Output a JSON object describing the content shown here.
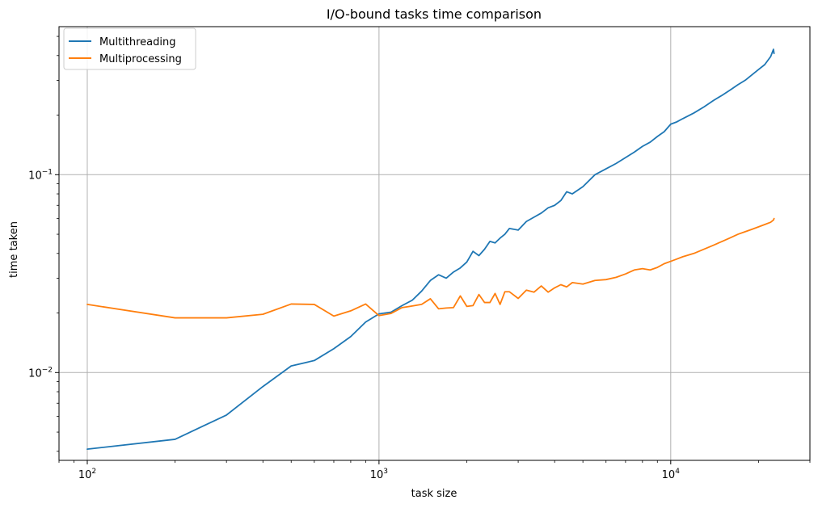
{
  "chart_data": {
    "type": "line",
    "title": "I/O-bound tasks time comparison",
    "xlabel": "task size",
    "ylabel": "time taken",
    "xscale": "log",
    "yscale": "log",
    "xlim": [
      80,
      30000
    ],
    "ylim": [
      0.0036,
      0.56
    ],
    "grid": true,
    "legend_position": "top-left",
    "x_ticks": [
      {
        "value": 100,
        "base": "10",
        "exp": "2"
      },
      {
        "value": 1000,
        "base": "10",
        "exp": "3"
      },
      {
        "value": 10000,
        "base": "10",
        "exp": "4"
      }
    ],
    "y_ticks": [
      {
        "value": 0.01,
        "base": "10",
        "exp": "−2"
      },
      {
        "value": 0.1,
        "base": "10",
        "exp": "−1"
      }
    ],
    "series": [
      {
        "name": "Multithreading",
        "color": "#1f77b4",
        "points": [
          [
            100,
            0.0041
          ],
          [
            200,
            0.0046
          ],
          [
            300,
            0.0061
          ],
          [
            400,
            0.0085
          ],
          [
            500,
            0.0108
          ],
          [
            600,
            0.0115
          ],
          [
            700,
            0.0132
          ],
          [
            800,
            0.0152
          ],
          [
            900,
            0.018
          ],
          [
            1000,
            0.0198
          ],
          [
            1100,
            0.0202
          ],
          [
            1200,
            0.0218
          ],
          [
            1300,
            0.0232
          ],
          [
            1400,
            0.0258
          ],
          [
            1500,
            0.0292
          ],
          [
            1600,
            0.0312
          ],
          [
            1700,
            0.03
          ],
          [
            1800,
            0.0322
          ],
          [
            1900,
            0.0338
          ],
          [
            2000,
            0.0362
          ],
          [
            2100,
            0.041
          ],
          [
            2200,
            0.039
          ],
          [
            2300,
            0.042
          ],
          [
            2400,
            0.046
          ],
          [
            2500,
            0.0452
          ],
          [
            2600,
            0.0478
          ],
          [
            2700,
            0.05
          ],
          [
            2800,
            0.0535
          ],
          [
            3000,
            0.0525
          ],
          [
            3200,
            0.058
          ],
          [
            3400,
            0.061
          ],
          [
            3600,
            0.064
          ],
          [
            3800,
            0.068
          ],
          [
            4000,
            0.07
          ],
          [
            4200,
            0.074
          ],
          [
            4400,
            0.082
          ],
          [
            4600,
            0.08
          ],
          [
            5000,
            0.087
          ],
          [
            5500,
            0.1
          ],
          [
            6000,
            0.107
          ],
          [
            6500,
            0.114
          ],
          [
            7000,
            0.122
          ],
          [
            7500,
            0.13
          ],
          [
            8000,
            0.139
          ],
          [
            8500,
            0.146
          ],
          [
            9000,
            0.156
          ],
          [
            9500,
            0.165
          ],
          [
            10000,
            0.18
          ],
          [
            10500,
            0.185
          ],
          [
            11000,
            0.192
          ],
          [
            12000,
            0.205
          ],
          [
            13000,
            0.22
          ],
          [
            14000,
            0.237
          ],
          [
            15000,
            0.252
          ],
          [
            16000,
            0.268
          ],
          [
            17000,
            0.285
          ],
          [
            18000,
            0.3
          ],
          [
            19000,
            0.32
          ],
          [
            20000,
            0.34
          ],
          [
            21000,
            0.36
          ],
          [
            22000,
            0.395
          ],
          [
            22500,
            0.43
          ],
          [
            22600,
            0.41
          ]
        ]
      },
      {
        "name": "Multiprocessing",
        "color": "#ff7f0e",
        "points": [
          [
            100,
            0.0221
          ],
          [
            200,
            0.0189
          ],
          [
            300,
            0.0189
          ],
          [
            400,
            0.0197
          ],
          [
            500,
            0.0222
          ],
          [
            600,
            0.0221
          ],
          [
            700,
            0.0193
          ],
          [
            800,
            0.0205
          ],
          [
            900,
            0.0222
          ],
          [
            1000,
            0.0194
          ],
          [
            1100,
            0.0199
          ],
          [
            1200,
            0.0213
          ],
          [
            1300,
            0.0217
          ],
          [
            1400,
            0.0221
          ],
          [
            1500,
            0.0236
          ],
          [
            1600,
            0.021
          ],
          [
            1700,
            0.0212
          ],
          [
            1800,
            0.0213
          ],
          [
            1900,
            0.0244
          ],
          [
            2000,
            0.0216
          ],
          [
            2100,
            0.0218
          ],
          [
            2200,
            0.0248
          ],
          [
            2300,
            0.0226
          ],
          [
            2400,
            0.0226
          ],
          [
            2500,
            0.0251
          ],
          [
            2600,
            0.0221
          ],
          [
            2700,
            0.0256
          ],
          [
            2800,
            0.0256
          ],
          [
            3000,
            0.0237
          ],
          [
            3200,
            0.0261
          ],
          [
            3400,
            0.0255
          ],
          [
            3600,
            0.0274
          ],
          [
            3800,
            0.0255
          ],
          [
            4000,
            0.0268
          ],
          [
            4200,
            0.0278
          ],
          [
            4400,
            0.0271
          ],
          [
            4600,
            0.0285
          ],
          [
            5000,
            0.028
          ],
          [
            5500,
            0.0292
          ],
          [
            6000,
            0.0295
          ],
          [
            6500,
            0.0303
          ],
          [
            7000,
            0.0315
          ],
          [
            7500,
            0.033
          ],
          [
            8000,
            0.0335
          ],
          [
            8500,
            0.033
          ],
          [
            9000,
            0.034
          ],
          [
            9500,
            0.0355
          ],
          [
            10000,
            0.0365
          ],
          [
            10500,
            0.0375
          ],
          [
            11000,
            0.0385
          ],
          [
            12000,
            0.04
          ],
          [
            13000,
            0.042
          ],
          [
            14000,
            0.044
          ],
          [
            15000,
            0.046
          ],
          [
            16000,
            0.048
          ],
          [
            17000,
            0.05
          ],
          [
            18000,
            0.0515
          ],
          [
            19000,
            0.053
          ],
          [
            20000,
            0.0545
          ],
          [
            21000,
            0.056
          ],
          [
            22000,
            0.0575
          ],
          [
            22500,
            0.059
          ],
          [
            22600,
            0.06
          ]
        ]
      }
    ]
  }
}
